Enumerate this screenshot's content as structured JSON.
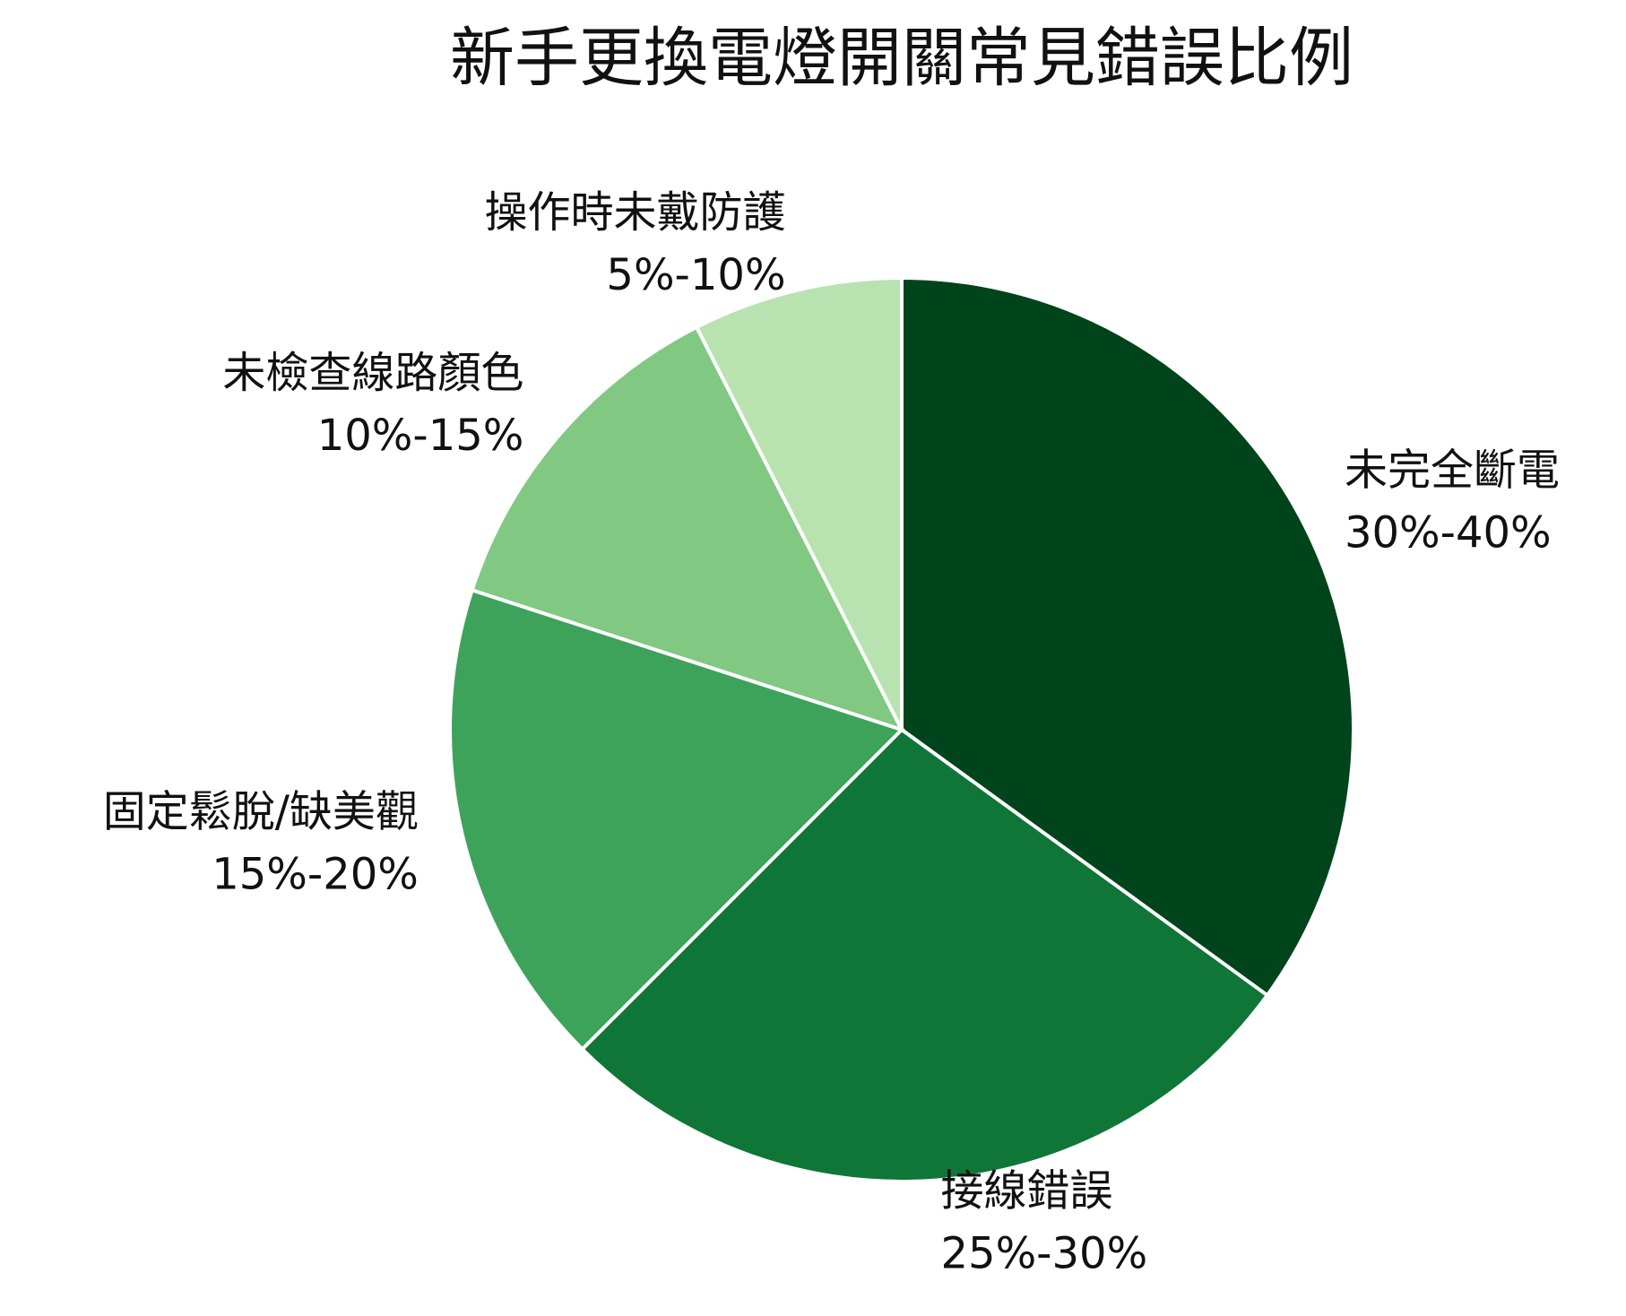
{
  "chart_data": {
    "type": "pie",
    "title": "新手更換電燈開關常見錯誤比例",
    "categories": [
      "未完全斷電",
      "接線錯誤",
      "固定鬆脫/缺美觀",
      "未檢查線路顏色",
      "操作時未戴防護"
    ],
    "values": [
      35,
      27.5,
      17.5,
      12.5,
      7.5
    ],
    "value_labels": [
      "30%-40%",
      "25%-30%",
      "15%-20%",
      "10%-15%",
      "5%-10%"
    ],
    "colors": [
      "#00441b",
      "#0f7637",
      "#3da35b",
      "#81c882",
      "#b9e2b1"
    ]
  }
}
